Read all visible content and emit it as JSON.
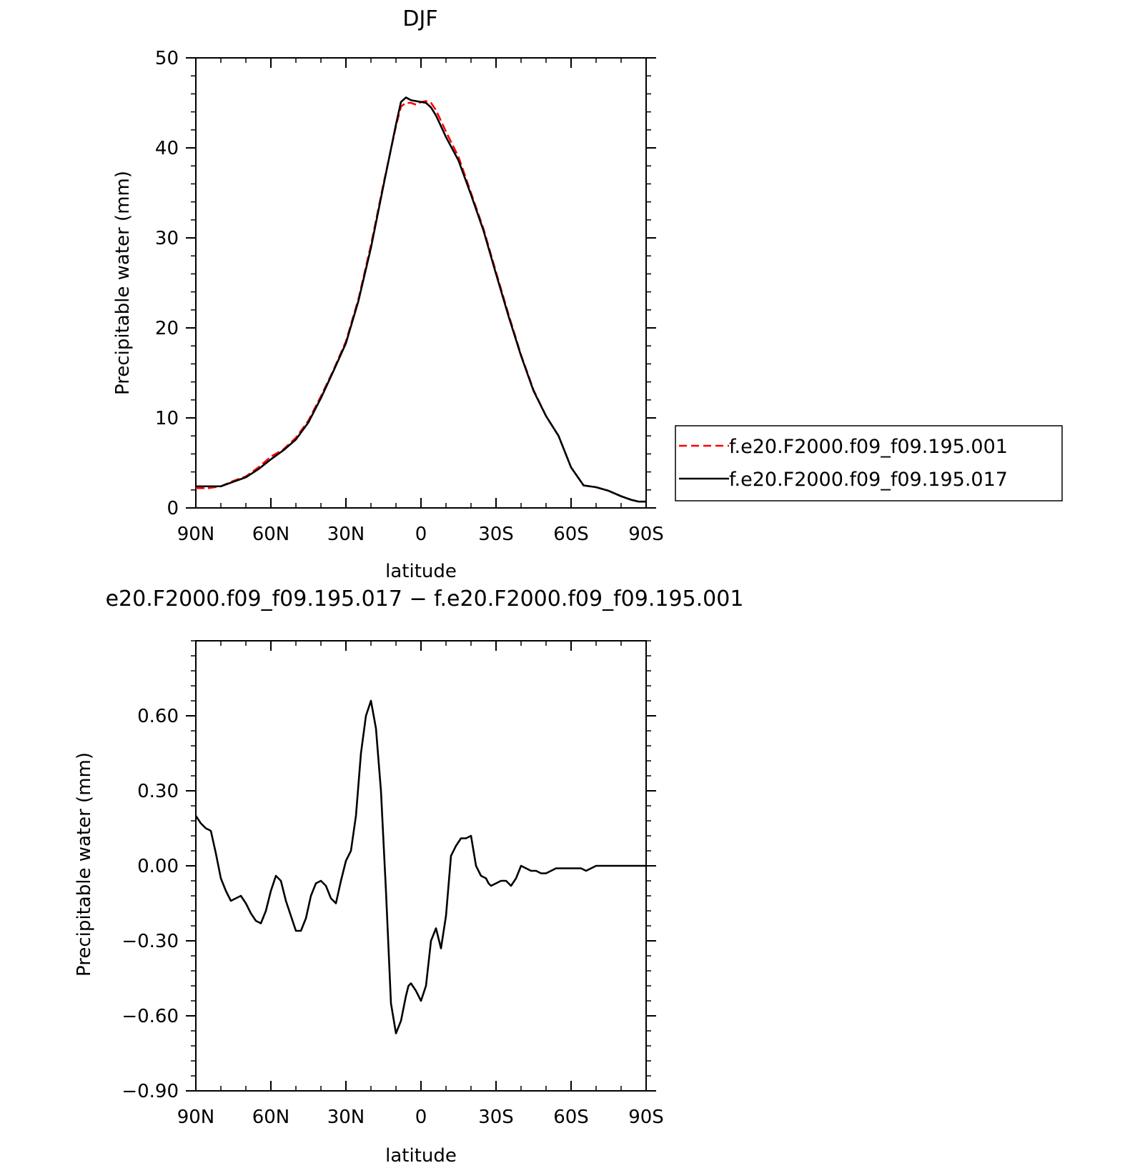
{
  "chart_data": [
    {
      "type": "line",
      "title": "DJF",
      "xlabel": "latitude",
      "ylabel": "Precipitable water (mm)",
      "xlim": [
        90,
        -90
      ],
      "ylim": [
        0,
        50
      ],
      "x_ticks": [
        {
          "value": 90,
          "label": "90N"
        },
        {
          "value": 60,
          "label": "60N"
        },
        {
          "value": 30,
          "label": "30N"
        },
        {
          "value": 0,
          "label": "0"
        },
        {
          "value": -30,
          "label": "30S"
        },
        {
          "value": -60,
          "label": "60S"
        },
        {
          "value": -90,
          "label": "90S"
        }
      ],
      "y_ticks": [
        {
          "value": 0,
          "label": "0"
        },
        {
          "value": 10,
          "label": "10"
        },
        {
          "value": 20,
          "label": "20"
        },
        {
          "value": 30,
          "label": "30"
        },
        {
          "value": 40,
          "label": "40"
        },
        {
          "value": 50,
          "label": "50"
        }
      ],
      "grid": false,
      "legend": "right",
      "series": [
        {
          "name": "f.e20.F2000.f09_f09.195.001",
          "color": "#ff0000",
          "style": "dashed",
          "x": [
            90,
            85,
            80,
            75,
            70,
            65,
            60,
            55,
            50,
            45,
            40,
            35,
            30,
            25,
            20,
            15,
            10,
            8,
            6,
            4,
            2,
            0,
            -2,
            -4,
            -6,
            -10,
            -15,
            -20,
            -25,
            -30,
            -35,
            -40,
            -45,
            -50,
            -55,
            -60,
            -65,
            -70,
            -75,
            -80,
            -84,
            -87,
            -90
          ],
          "y": [
            2.2,
            2.2,
            2.4,
            3.0,
            3.5,
            4.5,
            5.7,
            6.5,
            7.8,
            9.7,
            12.4,
            15.3,
            18.5,
            23.2,
            29.2,
            36.0,
            42.4,
            44.6,
            45.0,
            45.0,
            44.8,
            45.1,
            45.2,
            45.0,
            44.2,
            41.8,
            39.0,
            35.0,
            31.0,
            26.2,
            21.5,
            17.0,
            13.1,
            10.2,
            8.0,
            4.5,
            2.5,
            2.3,
            1.9,
            1.3,
            0.9,
            0.7,
            0.7
          ]
        },
        {
          "name": "f.e20.F2000.f09_f09.195.017",
          "color": "#000000",
          "style": "solid",
          "x": [
            90,
            85,
            80,
            75,
            70,
            65,
            60,
            55,
            50,
            45,
            40,
            35,
            30,
            25,
            20,
            15,
            10,
            8,
            6,
            4,
            2,
            0,
            -2,
            -4,
            -6,
            -10,
            -15,
            -20,
            -25,
            -30,
            -35,
            -40,
            -45,
            -50,
            -55,
            -60,
            -65,
            -70,
            -75,
            -80,
            -84,
            -87,
            -90
          ],
          "y": [
            2.4,
            2.4,
            2.4,
            2.9,
            3.4,
            4.3,
            5.4,
            6.4,
            7.6,
            9.5,
            12.2,
            15.2,
            18.3,
            23.0,
            28.9,
            35.8,
            42.6,
            45.1,
            45.6,
            45.3,
            45.2,
            45.1,
            45.0,
            44.5,
            43.6,
            41.2,
            38.6,
            34.8,
            30.8,
            26.0,
            21.3,
            16.9,
            13.0,
            10.2,
            8.0,
            4.5,
            2.5,
            2.3,
            1.9,
            1.3,
            0.9,
            0.7,
            0.7
          ]
        }
      ]
    },
    {
      "type": "line",
      "title": "e20.F2000.f09_f09.195.017 − f.e20.F2000.f09_f09.195.001",
      "xlabel": "latitude",
      "ylabel": "Precipitable water (mm)",
      "xlim": [
        90,
        -90
      ],
      "ylim": [
        -0.9,
        0.9
      ],
      "x_ticks": [
        {
          "value": 90,
          "label": "90N"
        },
        {
          "value": 60,
          "label": "60N"
        },
        {
          "value": 30,
          "label": "30N"
        },
        {
          "value": 0,
          "label": "0"
        },
        {
          "value": -30,
          "label": "30S"
        },
        {
          "value": -60,
          "label": "60S"
        },
        {
          "value": -90,
          "label": "90S"
        }
      ],
      "y_ticks": [
        {
          "value": -0.9,
          "label": "−0.90"
        },
        {
          "value": -0.6,
          "label": "−0.60"
        },
        {
          "value": -0.3,
          "label": "−0.30"
        },
        {
          "value": 0.0,
          "label": "0.00"
        },
        {
          "value": 0.3,
          "label": "0.30"
        },
        {
          "value": 0.6,
          "label": "0.60"
        }
      ],
      "grid": false,
      "series": [
        {
          "color": "#000000",
          "style": "solid",
          "x": [
            90,
            88,
            86,
            84,
            82,
            80,
            78,
            76,
            74,
            72,
            70,
            68,
            66,
            64,
            62,
            60,
            58,
            56,
            54,
            52,
            50,
            48,
            46,
            44,
            42,
            40,
            38,
            36,
            34,
            32,
            30,
            28,
            26,
            24,
            22,
            20,
            18,
            16,
            14,
            12,
            10,
            8,
            6,
            5,
            4,
            2,
            0,
            -2,
            -4,
            -6,
            -8,
            -10,
            -12,
            -14,
            -16,
            -18,
            -20,
            -22,
            -24,
            -26,
            -27,
            -28,
            -30,
            -32,
            -34,
            -36,
            -38,
            -40,
            -42,
            -44,
            -46,
            -48,
            -50,
            -52,
            -54,
            -56,
            -58,
            -60,
            -62,
            -64,
            -66,
            -68,
            -70,
            -72,
            -74,
            -76,
            -78,
            -80,
            -82,
            -84,
            -86,
            -88,
            -90
          ],
          "y": [
            0.2,
            0.17,
            0.15,
            0.14,
            0.05,
            -0.05,
            -0.1,
            -0.14,
            -0.13,
            -0.12,
            -0.15,
            -0.19,
            -0.22,
            -0.23,
            -0.18,
            -0.1,
            -0.04,
            -0.06,
            -0.14,
            -0.2,
            -0.26,
            -0.26,
            -0.21,
            -0.12,
            -0.07,
            -0.06,
            -0.08,
            -0.13,
            -0.15,
            -0.06,
            0.02,
            0.06,
            0.2,
            0.45,
            0.6,
            0.66,
            0.55,
            0.3,
            -0.1,
            -0.55,
            -0.67,
            -0.62,
            -0.52,
            -0.48,
            -0.47,
            -0.5,
            -0.54,
            -0.48,
            -0.3,
            -0.25,
            -0.33,
            -0.2,
            0.04,
            0.08,
            0.11,
            0.11,
            0.12,
            0.0,
            -0.04,
            -0.05,
            -0.07,
            -0.08,
            -0.07,
            -0.06,
            -0.06,
            -0.08,
            -0.05,
            0.0,
            -0.01,
            -0.02,
            -0.02,
            -0.03,
            -0.03,
            -0.02,
            -0.01,
            -0.01,
            -0.01,
            -0.01,
            -0.01,
            -0.01,
            -0.02,
            -0.01,
            0.0,
            0.0,
            0.0,
            0.0,
            0.0,
            0.0,
            0.0,
            0.0,
            0.0,
            0.0,
            0.0
          ]
        }
      ]
    }
  ]
}
